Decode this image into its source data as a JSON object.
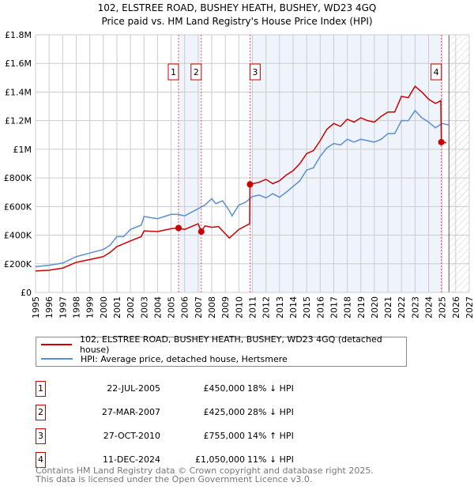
{
  "title": "102, ELSTREE ROAD, BUSHEY HEATH, BUSHEY, WD23 4GQ",
  "subtitle": "Price paid vs. HM Land Registry's House Price Index (HPI)",
  "legend": {
    "property": "102, ELSTREE ROAD, BUSHEY HEATH, BUSHEY, WD23 4GQ (detached house)",
    "hpi": "HPI: Average price, detached house, Hertsmere"
  },
  "sales": [
    {
      "n": "1",
      "date": "22-JUL-2005",
      "price": "£450,000",
      "hpi": "18% ↓ HPI"
    },
    {
      "n": "2",
      "date": "27-MAR-2007",
      "price": "£425,000",
      "hpi": "28% ↓ HPI"
    },
    {
      "n": "3",
      "date": "27-OCT-2010",
      "price": "£755,000",
      "hpi": "14% ↑ HPI"
    },
    {
      "n": "4",
      "date": "11-DEC-2024",
      "price": "£1,050,000",
      "hpi": "11% ↓ HPI"
    }
  ],
  "footer": {
    "line1": "Contains HM Land Registry data © Crown copyright and database right 2025.",
    "line2": "This data is licensed under the Open Government Licence v3.0."
  },
  "colors": {
    "property": "#cc0000",
    "hpi": "#5b8fd0",
    "shade": "#eef3fc"
  },
  "chart_data": {
    "type": "line",
    "xlim": [
      1995,
      2027
    ],
    "ylim": [
      0,
      1800000
    ],
    "yticks": [
      0,
      200000,
      400000,
      600000,
      800000,
      1000000,
      1200000,
      1400000,
      1600000,
      1800000
    ],
    "ytick_labels": [
      "£0",
      "£200K",
      "£400K",
      "£600K",
      "£800K",
      "£1M",
      "£1.2M",
      "£1.4M",
      "£1.6M",
      "£1.8M"
    ],
    "xticks": [
      1995,
      1996,
      1997,
      1998,
      1999,
      2000,
      2001,
      2002,
      2003,
      2004,
      2005,
      2006,
      2007,
      2008,
      2009,
      2010,
      2011,
      2012,
      2013,
      2014,
      2015,
      2016,
      2017,
      2018,
      2019,
      2020,
      2021,
      2022,
      2023,
      2024,
      2025,
      2026,
      2027
    ],
    "forecast_start": 2025.5,
    "shaded": [
      [
        2005.55,
        2007.23
      ],
      [
        2010.82,
        2024.94
      ]
    ],
    "sale_points": [
      {
        "label": "1",
        "x": 2005.55,
        "y": 450000
      },
      {
        "label": "2",
        "x": 2007.23,
        "y": 425000
      },
      {
        "label": "3",
        "x": 2010.82,
        "y": 755000
      },
      {
        "label": "4",
        "x": 2024.94,
        "y": 1050000
      }
    ],
    "series": [
      {
        "name": "property",
        "x": [
          1995,
          1996,
          1997,
          1998,
          1999,
          2000,
          2000.5,
          2001,
          2002,
          2002.8,
          2003,
          2004,
          2005,
          2005.55,
          2006,
          2007,
          2007.23,
          2007.5,
          2008,
          2008.5,
          2009,
          2009.3,
          2010,
          2010.8,
          2010.82,
          2011.5,
          2012,
          2012.5,
          2013,
          2013.5,
          2014,
          2014.5,
          2015,
          2015.5,
          2016,
          2016.5,
          2017,
          2017.5,
          2018,
          2018.5,
          2019,
          2019.5,
          2020,
          2020.5,
          2021,
          2021.5,
          2022,
          2022.5,
          2023,
          2023.5,
          2024,
          2024.5,
          2024.9,
          2024.94,
          2025.3
        ],
        "y": [
          150000,
          155000,
          170000,
          210000,
          230000,
          250000,
          280000,
          320000,
          360000,
          390000,
          430000,
          425000,
          445000,
          450000,
          440000,
          480000,
          425000,
          465000,
          455000,
          460000,
          410000,
          380000,
          440000,
          480000,
          755000,
          770000,
          790000,
          760000,
          780000,
          820000,
          850000,
          900000,
          970000,
          990000,
          1060000,
          1140000,
          1180000,
          1160000,
          1210000,
          1190000,
          1220000,
          1200000,
          1190000,
          1230000,
          1260000,
          1260000,
          1370000,
          1360000,
          1440000,
          1400000,
          1350000,
          1320000,
          1340000,
          1050000,
          1045000
        ]
      },
      {
        "name": "hpi",
        "x": [
          1995,
          1996,
          1997,
          1998,
          1999,
          2000,
          2000.5,
          2001,
          2001.5,
          2002,
          2002.8,
          2003,
          2004,
          2004.5,
          2005,
          2005.5,
          2006,
          2007,
          2007.5,
          2008,
          2008.3,
          2008.8,
          2009.3,
          2009.5,
          2010,
          2010.5,
          2011,
          2011.5,
          2012,
          2012.5,
          2013,
          2013.5,
          2014,
          2014.5,
          2015,
          2015.5,
          2016,
          2016.5,
          2017,
          2017.5,
          2018,
          2018.5,
          2019,
          2019.5,
          2020,
          2020.5,
          2021,
          2021.5,
          2022,
          2022.5,
          2023,
          2023.5,
          2024,
          2024.5,
          2025,
          2025.5
        ],
        "y": [
          180000,
          190000,
          205000,
          250000,
          275000,
          300000,
          330000,
          390000,
          390000,
          440000,
          470000,
          530000,
          515000,
          530000,
          545000,
          545000,
          535000,
          585000,
          610000,
          655000,
          620000,
          640000,
          570000,
          535000,
          610000,
          630000,
          670000,
          680000,
          660000,
          690000,
          665000,
          700000,
          740000,
          780000,
          855000,
          870000,
          950000,
          1010000,
          1040000,
          1030000,
          1070000,
          1050000,
          1070000,
          1060000,
          1050000,
          1070000,
          1110000,
          1110000,
          1200000,
          1200000,
          1270000,
          1220000,
          1190000,
          1150000,
          1180000,
          1170000
        ]
      }
    ]
  }
}
